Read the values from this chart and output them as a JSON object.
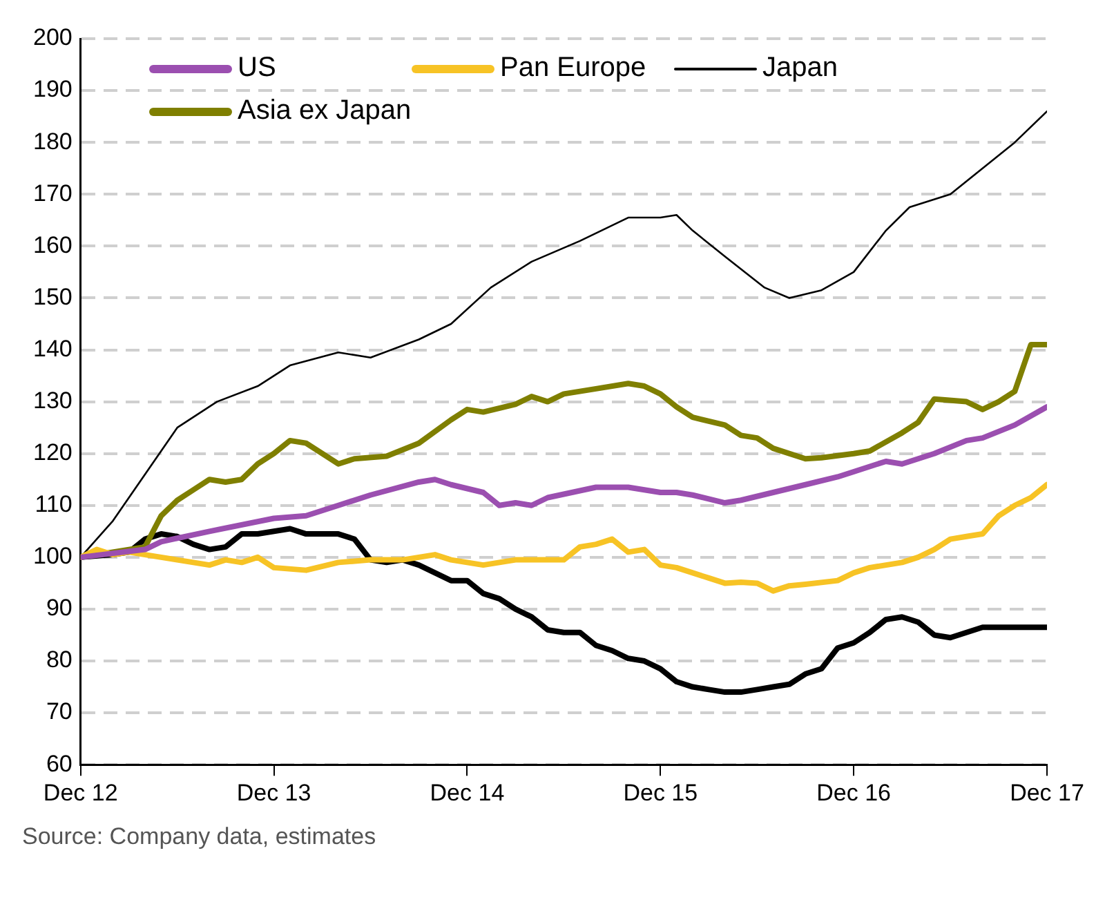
{
  "chart_data": {
    "type": "line",
    "annotations": [
      "Source: Company data, estimates"
    ],
    "xlim": [
      "2012-12",
      "2017-12"
    ],
    "xticks": [
      {
        "value": "2012-12",
        "label": "Dec 12"
      },
      {
        "value": "2013-12",
        "label": "Dec 13"
      },
      {
        "value": "2014-12",
        "label": "Dec 14"
      },
      {
        "value": "2015-12",
        "label": "Dec 15"
      },
      {
        "value": "2016-12",
        "label": "Dec 16"
      },
      {
        "value": "2017-12",
        "label": "Dec 17"
      }
    ],
    "ylim": [
      60,
      200
    ],
    "yticks": [
      60,
      70,
      80,
      90,
      100,
      110,
      120,
      130,
      140,
      150,
      160,
      170,
      180,
      190,
      200
    ],
    "grid": "y",
    "legend": "top left",
    "marker": "none",
    "line_style": "solid",
    "series": [
      {
        "name": "US",
        "color": "#9b4fb0",
        "x": [
          "2012-12",
          "2013-04",
          "2013-05",
          "2013-08",
          "2013-12",
          "2014-02",
          "2014-04",
          "2014-06",
          "2014-09",
          "2014-10",
          "2014-11",
          "2015-01",
          "2015-02",
          "2015-03",
          "2015-04",
          "2015-05",
          "2015-08",
          "2015-10",
          "2015-12",
          "2016-01",
          "2016-02",
          "2016-04",
          "2016-05",
          "2016-07",
          "2016-09",
          "2016-11",
          "2016-12",
          "2017-02",
          "2017-03",
          "2017-05",
          "2017-07",
          "2017-08",
          "2017-10",
          "2017-12"
        ],
        "values": [
          100,
          101.5,
          103,
          105,
          107.5,
          108,
          110,
          112,
          114.5,
          115,
          114,
          112.5,
          110,
          110.5,
          110,
          111.5,
          113.5,
          113.5,
          112.5,
          112.5,
          112,
          110.5,
          111,
          112.5,
          114,
          115.5,
          116.5,
          118.5,
          118,
          120,
          122.5,
          123,
          125.5,
          129
        ]
      },
      {
        "name": "Pan Europe",
        "color": "#f7c325",
        "x": [
          "2012-12",
          "2013-01",
          "2013-02",
          "2013-03",
          "2013-05",
          "2013-06",
          "2013-08",
          "2013-09",
          "2013-10",
          "2013-11",
          "2013-12",
          "2014-02",
          "2014-04",
          "2014-06",
          "2014-08",
          "2014-10",
          "2014-11",
          "2015-01",
          "2015-03",
          "2015-05",
          "2015-06",
          "2015-07",
          "2015-08",
          "2015-09",
          "2015-10",
          "2015-11",
          "2015-12",
          "2016-01",
          "2016-03",
          "2016-04",
          "2016-05",
          "2016-06",
          "2016-07",
          "2016-08",
          "2016-09",
          "2016-11",
          "2016-12",
          "2017-01",
          "2017-03",
          "2017-04",
          "2017-05",
          "2017-06",
          "2017-07",
          "2017-08",
          "2017-09",
          "2017-10",
          "2017-11",
          "2017-12"
        ],
        "values": [
          100,
          101.5,
          100.5,
          101,
          100,
          99.5,
          98.5,
          99.5,
          99,
          100,
          98,
          97.5,
          99,
          99.5,
          99.5,
          100.5,
          99.5,
          98.5,
          99.5,
          99.5,
          99.5,
          102,
          102.5,
          103.5,
          101,
          101.5,
          98.5,
          98,
          96,
          95,
          95.2,
          95,
          93.5,
          94.5,
          94.8,
          95.5,
          97,
          98,
          99,
          100,
          101.5,
          103.5,
          104,
          104.5,
          108,
          110,
          111.5,
          114
        ]
      },
      {
        "name": "Japan",
        "color": "#000000",
        "x": [
          "2012-12",
          "2013-02",
          "2013-04",
          "2013-06",
          "2013-08-15",
          "2013-11",
          "2014-01",
          "2014-04",
          "2014-06",
          "2014-09",
          "2014-11",
          "2015-01-15",
          "2015-04",
          "2015-07",
          "2015-10",
          "2015-12",
          "2016-01",
          "2016-02",
          "2016-04",
          "2016-06-15",
          "2016-08",
          "2016-10",
          "2016-12",
          "2017-02",
          "2017-03-15",
          "2017-06",
          "2017-08",
          "2017-10",
          "2017-12"
        ],
        "values": [
          100,
          107,
          116,
          125,
          130,
          133,
          137,
          139.5,
          138.5,
          142,
          145,
          152,
          157,
          161,
          165.5,
          165.5,
          166,
          163,
          158,
          152,
          150,
          151.5,
          155,
          163,
          167.5,
          170,
          175,
          180,
          186
        ]
      },
      {
        "name": "Asia ex Japan",
        "color": "#7f7f00",
        "x": [
          "2012-12",
          "2013-02",
          "2013-04",
          "2013-05",
          "2013-06",
          "2013-07",
          "2013-08",
          "2013-09",
          "2013-10",
          "2013-11",
          "2013-12",
          "2014-01",
          "2014-02",
          "2014-03",
          "2014-04",
          "2014-05",
          "2014-07",
          "2014-09",
          "2014-11",
          "2014-12",
          "2015-01",
          "2015-03",
          "2015-04",
          "2015-05",
          "2015-06",
          "2015-08",
          "2015-10",
          "2015-11",
          "2015-12",
          "2016-01",
          "2016-02",
          "2016-04",
          "2016-05",
          "2016-06",
          "2016-07",
          "2016-09",
          "2016-10",
          "2016-12",
          "2017-01",
          "2017-03",
          "2017-04",
          "2017-05",
          "2017-07",
          "2017-08",
          "2017-09",
          "2017-10",
          "2017-11",
          "2017-12"
        ],
        "values": [
          100,
          101,
          102,
          108,
          111,
          113,
          115,
          114.5,
          115,
          118,
          120,
          122.5,
          122,
          120,
          118,
          119,
          119.5,
          122,
          126.5,
          128.5,
          128,
          129.5,
          131,
          130,
          131.5,
          132.5,
          133.5,
          133,
          131.5,
          129,
          127,
          125.5,
          123.5,
          123,
          121,
          119,
          119.2,
          120,
          120.5,
          124,
          126,
          130.5,
          130,
          128.5,
          130,
          132,
          141,
          141
        ]
      },
      {
        "color": "#000000",
        "x": [
          "2012-12",
          "2013-02",
          "2013-03",
          "2013-04",
          "2013-05",
          "2013-06",
          "2013-07",
          "2013-08",
          "2013-09",
          "2013-10",
          "2013-11",
          "2013-12",
          "2014-01",
          "2014-02",
          "2014-04",
          "2014-05",
          "2014-06",
          "2014-07",
          "2014-08",
          "2014-09",
          "2014-10",
          "2014-11",
          "2014-12",
          "2015-01",
          "2015-02",
          "2015-03",
          "2015-04",
          "2015-05",
          "2015-06",
          "2015-07",
          "2015-08",
          "2015-09",
          "2015-10",
          "2015-11",
          "2015-12",
          "2016-01",
          "2016-02",
          "2016-03",
          "2016-04",
          "2016-05",
          "2016-06",
          "2016-07",
          "2016-08",
          "2016-09",
          "2016-10",
          "2016-11",
          "2016-12",
          "2017-01",
          "2017-02",
          "2017-03",
          "2017-04",
          "2017-05",
          "2017-06",
          "2017-07",
          "2017-08",
          "2017-09",
          "2017-10",
          "2017-11",
          "2017-12"
        ],
        "values": [
          100,
          100.5,
          101,
          103.5,
          104.5,
          104,
          102.5,
          101.5,
          102,
          104.5,
          104.5,
          105,
          105.5,
          104.5,
          104.5,
          103.5,
          99.5,
          99,
          99.5,
          98.5,
          97,
          95.5,
          95.5,
          93,
          92,
          90,
          88.5,
          86,
          85.5,
          85.5,
          83,
          82,
          80.5,
          80,
          78.5,
          76,
          75,
          74.5,
          74,
          74,
          74.5,
          75,
          75.5,
          77.5,
          78.5,
          82.5,
          83.5,
          85.5,
          88,
          88.5,
          87.5,
          85,
          84.5,
          85.5,
          86.5,
          86.5,
          86.5,
          86.5,
          86.5
        ]
      }
    ]
  }
}
